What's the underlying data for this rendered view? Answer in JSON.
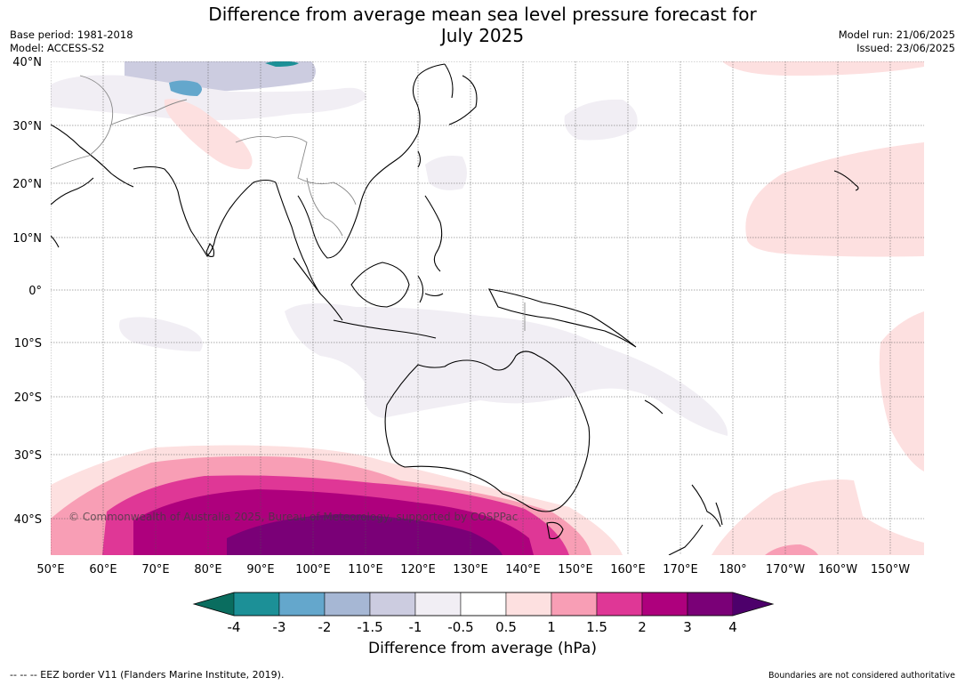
{
  "title_line1": "Difference from average mean sea level pressure forecast for",
  "title_line2": "July 2025",
  "meta_left": {
    "base_period": "Base period: 1981-2018",
    "model": "Model: ACCESS-S2"
  },
  "meta_right": {
    "model_run": "Model run: 21/06/2025",
    "issued": "Issued: 23/06/2025"
  },
  "latitude_labels": [
    "40°N",
    "30°N",
    "20°N",
    "10°N",
    "0°",
    "10°S",
    "20°S",
    "30°S",
    "40°S"
  ],
  "longitude_labels": [
    "50°E",
    "60°E",
    "70°E",
    "80°E",
    "90°E",
    "100°E",
    "110°E",
    "120°E",
    "130°E",
    "140°E",
    "150°E",
    "160°E",
    "170°E",
    "180°",
    "170°W",
    "160°W",
    "150°W"
  ],
  "copyright": "© Commonwealth of Australia 2025, Bureau of Meteorology, supported by COSPPac",
  "colorbar": {
    "label": "Difference from average (hPa)",
    "ticks": [
      "-4",
      "-3",
      "-2",
      "-1.5",
      "-1",
      "-0.5",
      "0.5",
      "1",
      "1.5",
      "2",
      "3",
      "4"
    ],
    "colors": [
      "#0a6d5f",
      "#1c9097",
      "#64a7cc",
      "#a6b7d4",
      "#cccce0",
      "#f1eef4",
      "#ffffff",
      "#fde0e0",
      "#f89eb5",
      "#df3796",
      "#ae007d",
      "#7a0077",
      "#4d006b"
    ]
  },
  "footer_left": "--  --  -- EEZ border V11 (Flanders Marine Institute, 2019).",
  "footer_right": "Boundaries are not considered authoritative"
}
